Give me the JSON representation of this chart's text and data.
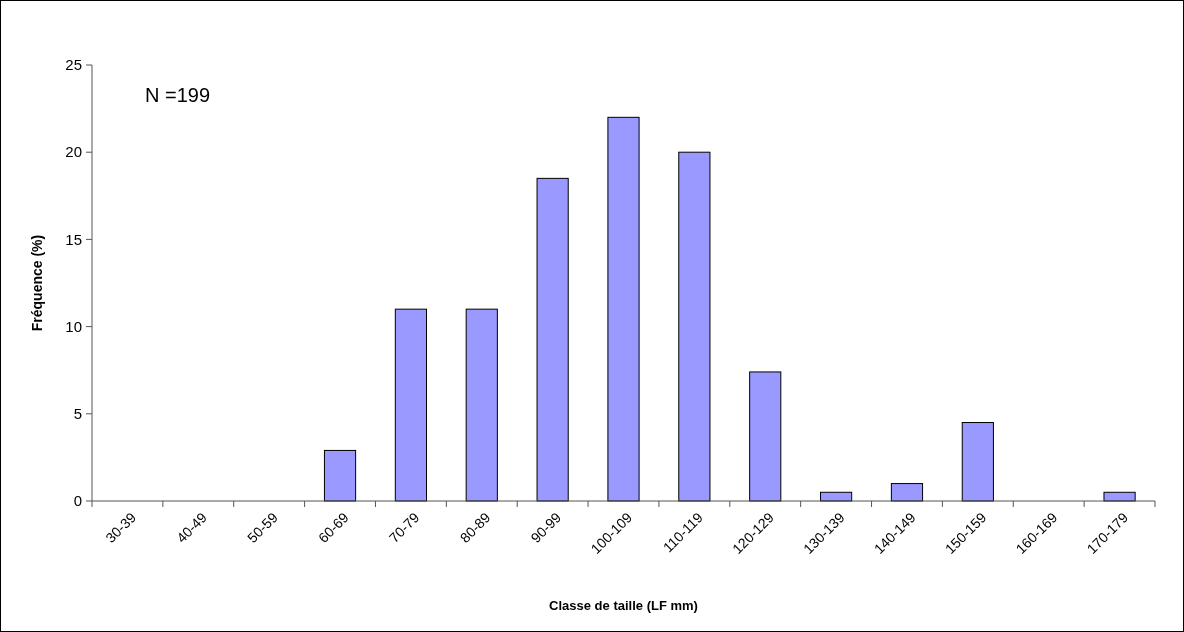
{
  "chart_data": {
    "type": "bar",
    "xlabel": "Classe de taille (LF mm)",
    "ylabel": "Fréquence (%)",
    "annotations": [
      "N =199"
    ],
    "categories": [
      "30-39",
      "40-49",
      "50-59",
      "60-69",
      "70-79",
      "80-89",
      "90-99",
      "100-109",
      "110-119",
      "120-129",
      "130-139",
      "140-149",
      "150-159",
      "160-169",
      "170-179"
    ],
    "values": [
      0,
      0,
      0,
      2.9,
      11,
      11,
      18.5,
      22,
      20,
      7.4,
      0.5,
      1,
      4.5,
      0,
      0.5
    ],
    "color": "#9999ff",
    "ylim": [
      0,
      25
    ],
    "yticks": [
      0,
      5,
      10,
      15,
      20,
      25
    ]
  }
}
